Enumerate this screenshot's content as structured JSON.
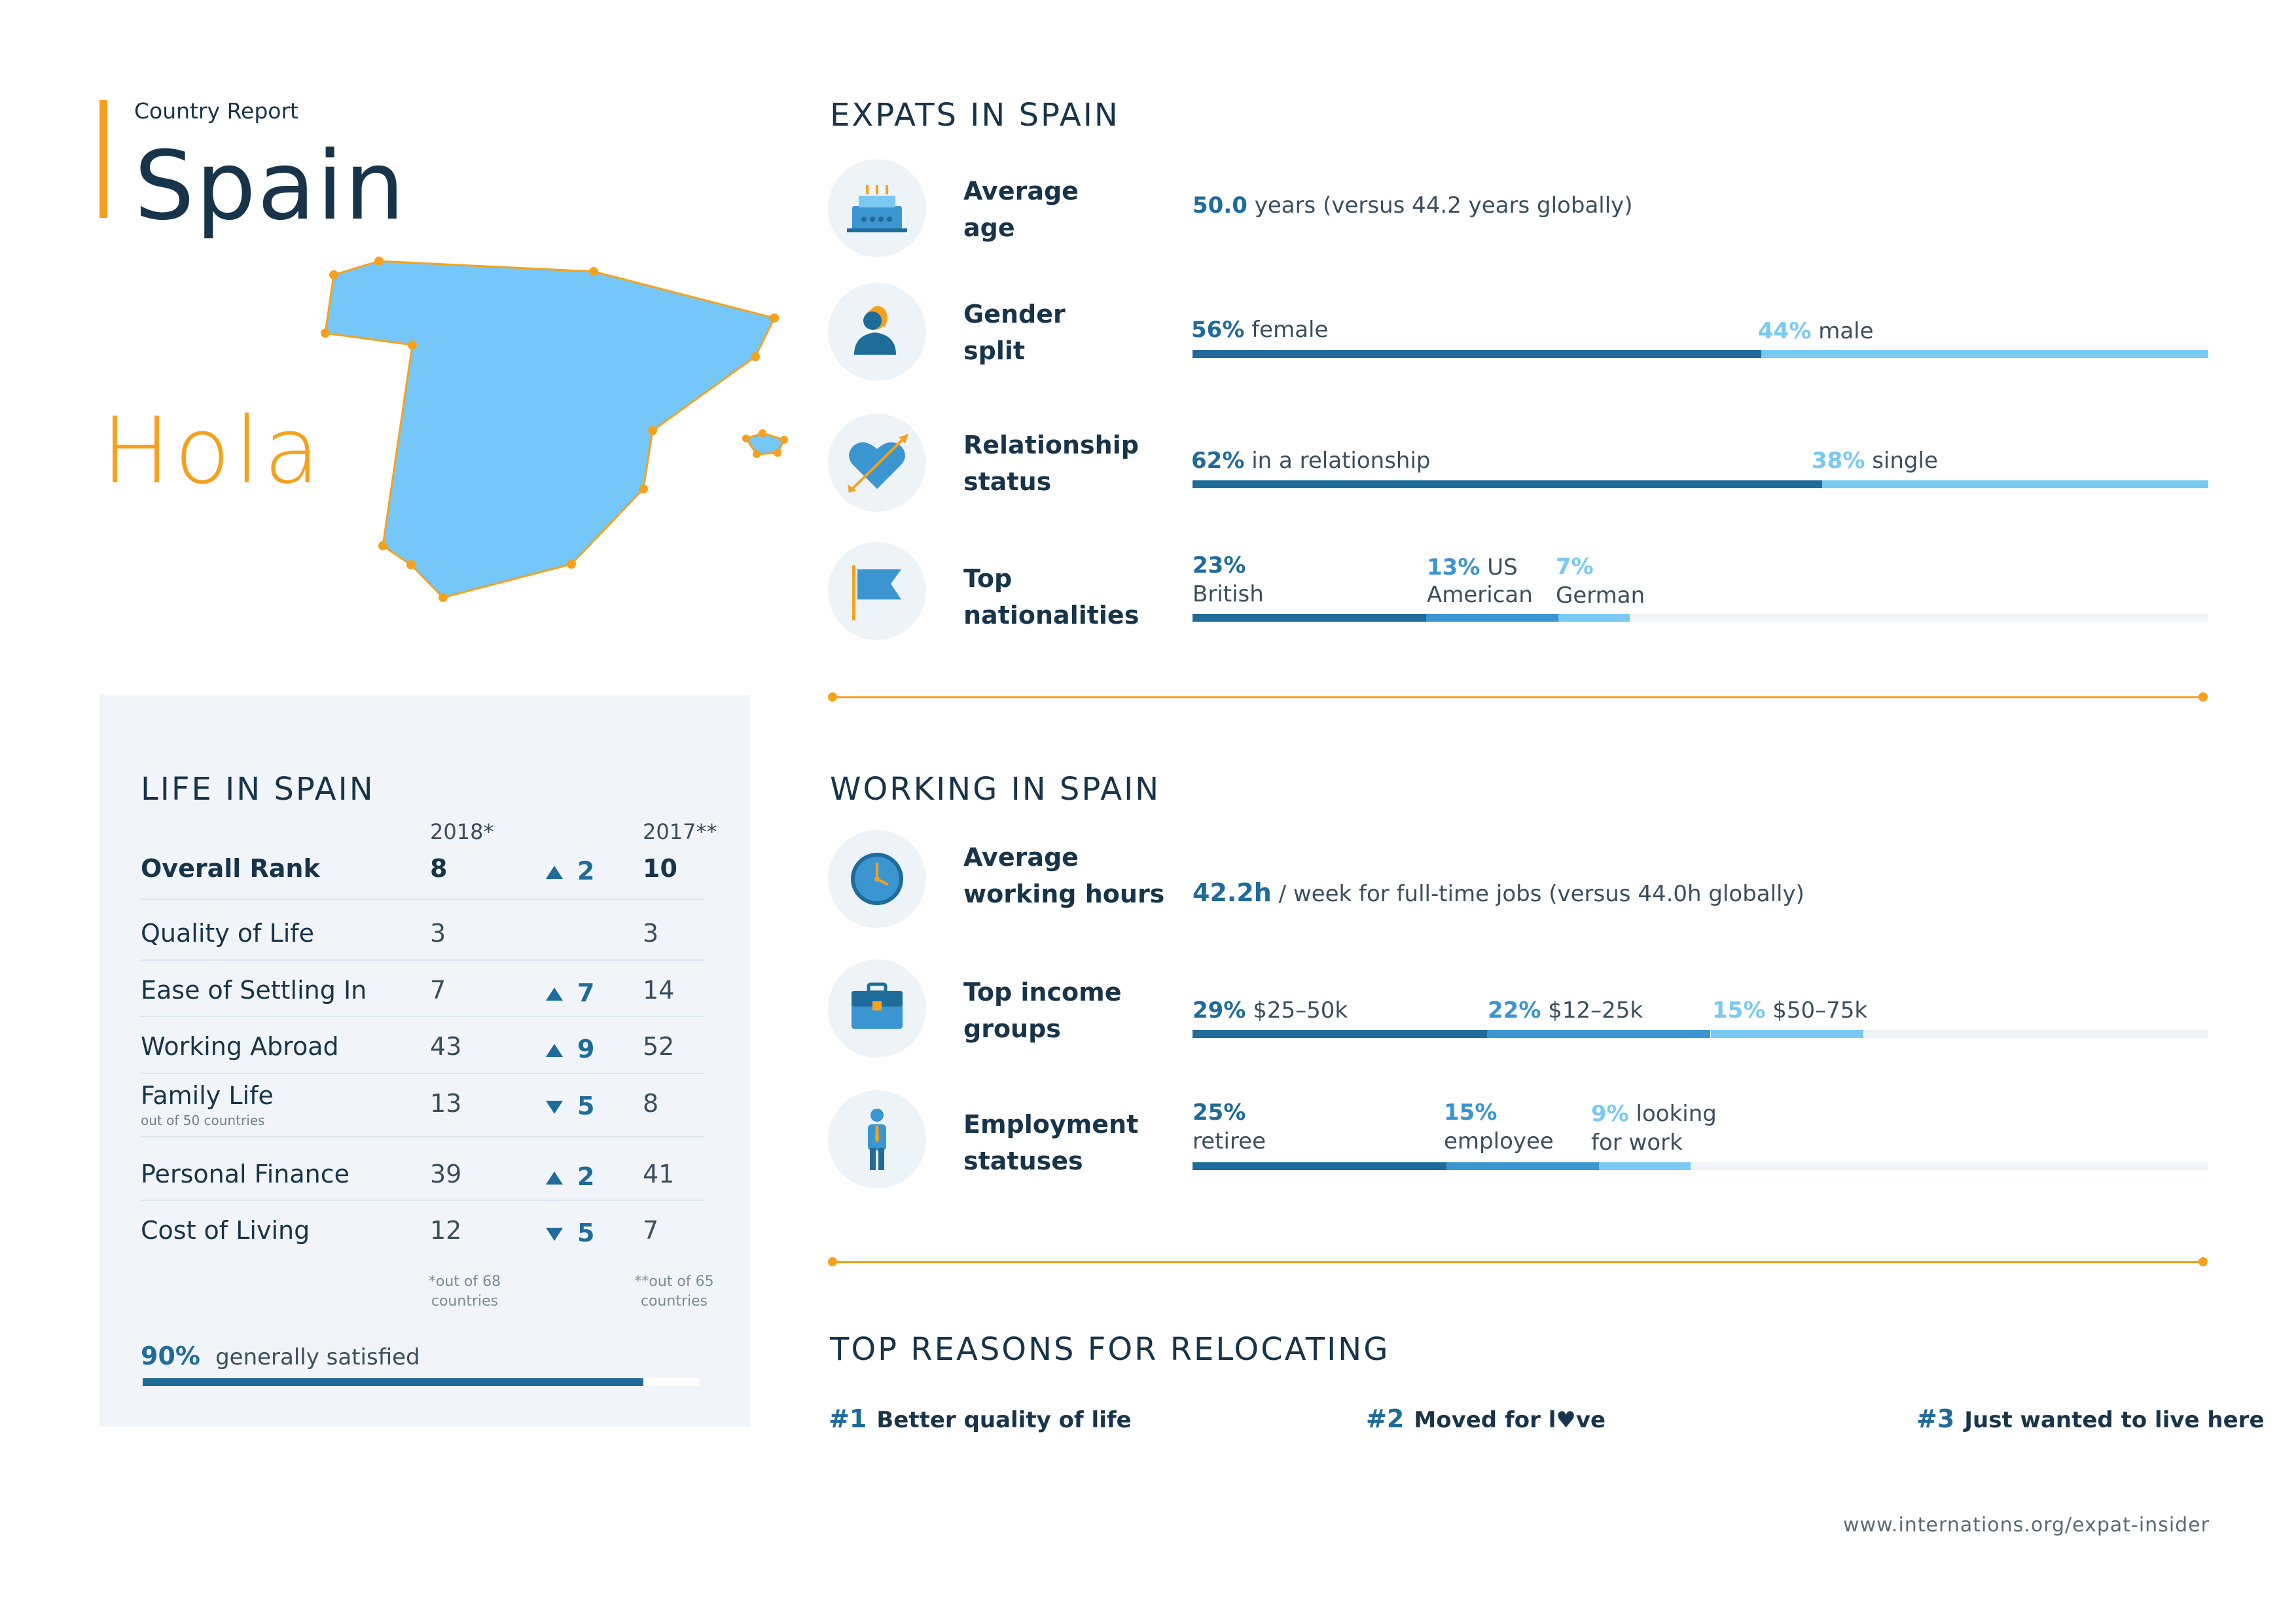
{
  "header": {
    "kicker": "Country Report",
    "country": "Spain",
    "greeting": "Hola"
  },
  "colors": {
    "accent": "#f5a11d",
    "navy": "#17344a",
    "dark_blue": "#1f6b9a",
    "mid_blue": "#3a95d0",
    "light_blue": "#79c9f3",
    "map_fill": "#74c7f8"
  },
  "expats": {
    "title": "EXPATS IN SPAIN",
    "average_age": {
      "label_line1": "Average",
      "label_line2": "age",
      "icon": "cake-icon",
      "value": "50.0",
      "text": "years (versus 44.2 years globally)"
    },
    "gender": {
      "label_line1": "Gender",
      "label_line2": "split",
      "icon": "person-icon",
      "segments": [
        {
          "value": "56%",
          "text": "female",
          "share": 0.56
        },
        {
          "value": "44%",
          "text": "male",
          "share": 0.44
        }
      ]
    },
    "relationship": {
      "label_line1": "Relationship",
      "label_line2": "status",
      "icon": "heart-arrow-icon",
      "segments": [
        {
          "value": "62%",
          "text": "in a relationship",
          "share": 0.62
        },
        {
          "value": "38%",
          "text": "single",
          "share": 0.38
        }
      ]
    },
    "nationalities": {
      "label_line1": "Top",
      "label_line2": "nationalities",
      "icon": "flag-icon",
      "segments": [
        {
          "value": "23%",
          "line1": "",
          "line2": "British",
          "share": 0.23
        },
        {
          "value": "13%",
          "line1": "US",
          "line2": "American",
          "share": 0.13
        },
        {
          "value": "7%",
          "line1": "",
          "line2": "German",
          "share": 0.07
        }
      ]
    }
  },
  "working": {
    "title": "WORKING IN SPAIN",
    "hours": {
      "label_line1": "Average",
      "label_line2": "working hours",
      "icon": "clock-icon",
      "value": "42.2h",
      "text": "/ week for full-time jobs (versus 44.0h globally)"
    },
    "income": {
      "label_line1": "Top income",
      "label_line2": "groups",
      "icon": "briefcase-icon",
      "segments": [
        {
          "value": "29%",
          "text": "$25–50k",
          "share": 0.29
        },
        {
          "value": "22%",
          "text": "$12–25k",
          "share": 0.22
        },
        {
          "value": "15%",
          "text": "$50–75k",
          "share": 0.15
        }
      ]
    },
    "employment": {
      "label_line1": "Employment",
      "label_line2": "statuses",
      "icon": "worker-icon",
      "segments": [
        {
          "value": "25%",
          "line1": "",
          "line2": "retiree",
          "share": 0.25
        },
        {
          "value": "15%",
          "line1": "",
          "line2": "employee",
          "share": 0.15
        },
        {
          "value": "9%",
          "line1": "looking",
          "line2": "for work",
          "share": 0.09
        }
      ]
    }
  },
  "reasons": {
    "title": "TOP REASONS FOR RELOCATING",
    "items": [
      {
        "num": "#1",
        "text": "Better quality of life"
      },
      {
        "num": "#2",
        "text_before": "Moved for l",
        "text_after": "ve"
      },
      {
        "num": "#3",
        "text": "Just wanted to live here"
      }
    ]
  },
  "life": {
    "title": "LIFE IN SPAIN",
    "col_2018": "2018*",
    "col_2017": "2017**",
    "rows": [
      {
        "label": "Overall Rank",
        "sub": "",
        "y2018": "8",
        "dir": "up",
        "change": "2",
        "y2017": "10"
      },
      {
        "label": "Quality of Life",
        "sub": "",
        "y2018": "3",
        "dir": "",
        "change": "",
        "y2017": "3"
      },
      {
        "label": "Ease of Settling In",
        "sub": "",
        "y2018": "7",
        "dir": "up",
        "change": "7",
        "y2017": "14"
      },
      {
        "label": "Working Abroad",
        "sub": "",
        "y2018": "43",
        "dir": "up",
        "change": "9",
        "y2017": "52"
      },
      {
        "label": "Family Life",
        "sub": "out of 50 countries",
        "y2018": "13",
        "dir": "down",
        "change": "5",
        "y2017": "8"
      },
      {
        "label": "Personal Finance",
        "sub": "",
        "y2018": "39",
        "dir": "up",
        "change": "2",
        "y2017": "41"
      },
      {
        "label": "Cost of Living",
        "sub": "",
        "y2018": "12",
        "dir": "down",
        "change": "5",
        "y2017": "7"
      }
    ],
    "foot_2018_line1": "*out of 68",
    "foot_2018_line2": "countries",
    "foot_2017_line1": "**out of 65",
    "foot_2017_line2": "countries",
    "satisfied_value": "90%",
    "satisfied_text": "generally satisfied",
    "satisfied_share": 0.9
  },
  "footer": {
    "url": "www.internations.org/expat-insider"
  }
}
